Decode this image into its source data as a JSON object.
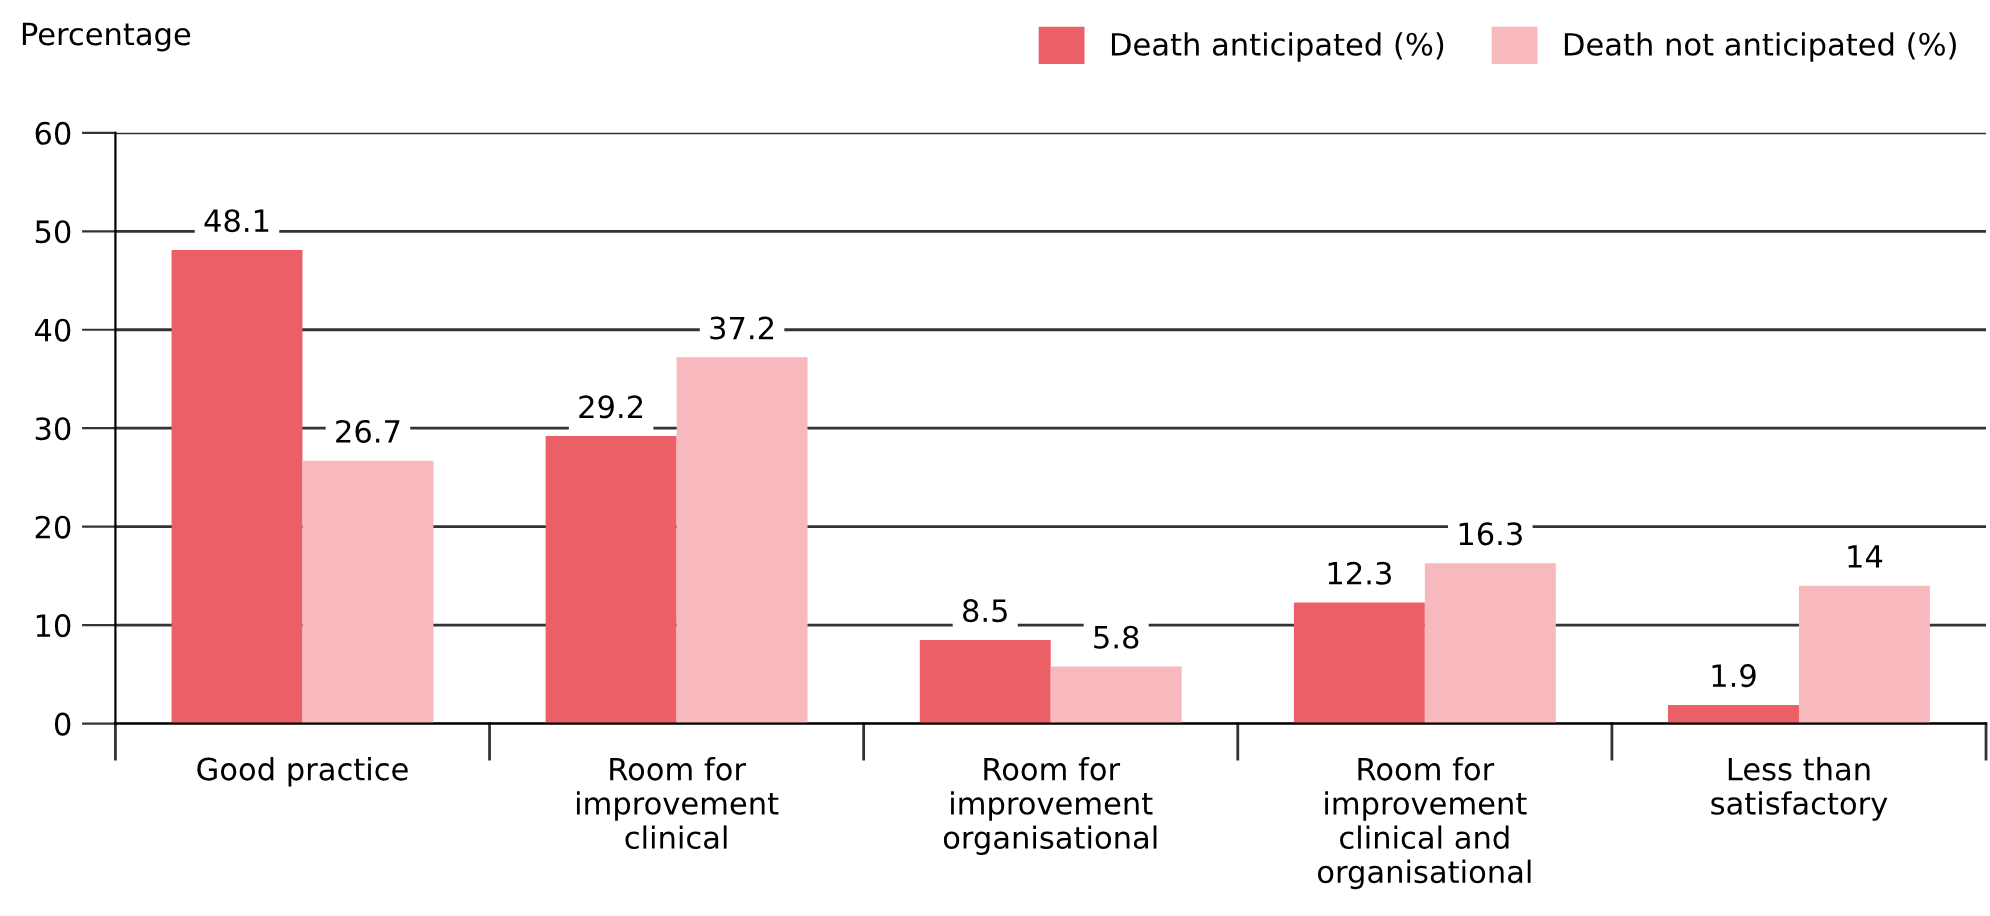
{
  "chart_data": {
    "type": "bar",
    "ylabel": "Percentage",
    "categories": [
      "Good practice",
      "Room for\nimprovement\nclinical",
      "Room for\nimprovement\norganisational",
      "Room for\nimprovement\nclinical and\norganisational",
      "Less than\nsatisfactory"
    ],
    "series": [
      {
        "name": "Death anticipated (%)",
        "color": "#ec5f67",
        "values": [
          48.1,
          29.2,
          8.5,
          12.3,
          1.9
        ]
      },
      {
        "name": "Death not anticipated (%)",
        "color": "#f7b9bd",
        "values": [
          26.7,
          37.2,
          5.8,
          16.3,
          14
        ]
      }
    ],
    "ylim": [
      0,
      60
    ],
    "yticks": [
      0,
      10,
      20,
      30,
      40,
      50,
      60
    ],
    "grid": "y",
    "legend": "top right",
    "data_labels": true
  }
}
